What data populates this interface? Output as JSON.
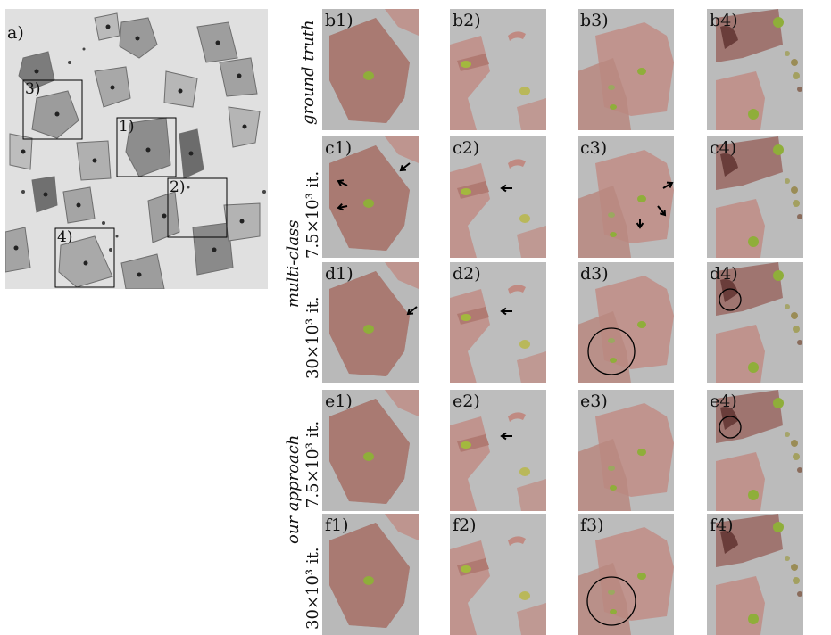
{
  "overview": {
    "label": "a)",
    "box_labels": [
      "1)",
      "2)",
      "3)",
      "4)"
    ]
  },
  "rows": [
    {
      "id": "b",
      "group_label": "ground truth",
      "iteration_label": ""
    },
    {
      "id": "c",
      "group_label": "multi-class",
      "iteration_label": "7.5×10³ it."
    },
    {
      "id": "d",
      "group_label": "",
      "iteration_label": "30×10³ it."
    },
    {
      "id": "e",
      "group_label": "our approach",
      "iteration_label": "7.5×10³ it."
    },
    {
      "id": "f",
      "group_label": "",
      "iteration_label": "30×10³ it."
    }
  ],
  "panel_labels": [
    [
      "b1)",
      "b2)",
      "b3)",
      "b4)"
    ],
    [
      "c1)",
      "c2)",
      "c3)",
      "c4)"
    ],
    [
      "d1)",
      "d2)",
      "d3)",
      "d4)"
    ],
    [
      "e1)",
      "e2)",
      "e3)",
      "e4)"
    ],
    [
      "f1)",
      "f2)",
      "f3)",
      "f4)"
    ]
  ],
  "colors": {
    "background_gray": "#b8b8b8",
    "cytoplasm_overlay": "#c08a82",
    "nucleus_overlay": "#8fae3a",
    "annotation_stroke": "#000000"
  }
}
